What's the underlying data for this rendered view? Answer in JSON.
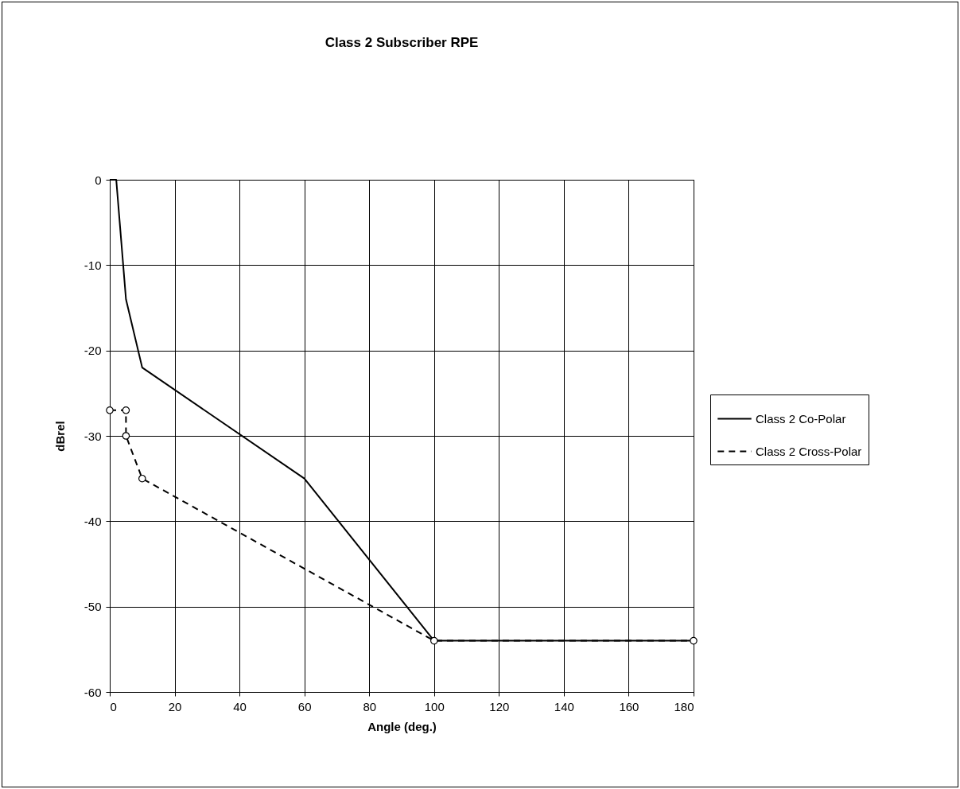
{
  "chart_data": {
    "type": "line",
    "title": "Class 2  Subscriber RPE",
    "xlabel": "Angle (deg.)",
    "ylabel": "dBrel",
    "xlim": [
      0,
      180
    ],
    "xticks": [
      0,
      20,
      40,
      60,
      80,
      100,
      120,
      140,
      160,
      180
    ],
    "ylim": [
      -60,
      0
    ],
    "yticks": [
      -60,
      -50,
      -40,
      -30,
      -20,
      -10,
      0
    ],
    "grid": true,
    "legend": "right",
    "series": [
      {
        "name": "Class 2 Co-Polar",
        "color": "#000000",
        "line_style": "solid",
        "marker": "none",
        "x": [
          0,
          2,
          5,
          10,
          60,
          100,
          180
        ],
        "values": [
          0,
          0,
          -14,
          -22,
          -35,
          -54,
          -54
        ]
      },
      {
        "name": "Class 2 Cross-Polar",
        "color": "#000000",
        "line_style": "dashed",
        "marker": "circle",
        "x": [
          0,
          5,
          5,
          10,
          100,
          180
        ],
        "values": [
          -27,
          -27,
          -30,
          -35,
          -54,
          -54
        ]
      }
    ]
  }
}
